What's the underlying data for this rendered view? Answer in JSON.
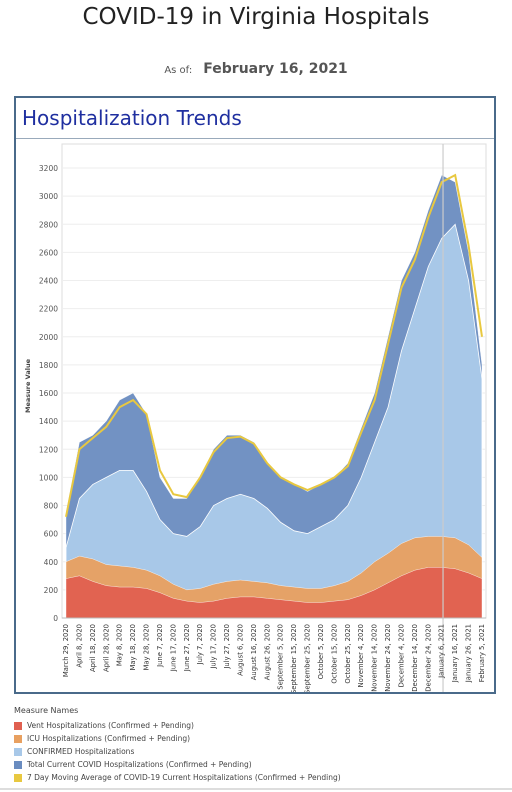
{
  "header": {
    "title": "COVID-19 in Virginia Hospitals",
    "as_of_label": "As of:",
    "as_of_value": "February 16, 2021"
  },
  "panel": {
    "title": "Hospitalization Trends"
  },
  "chart_data": {
    "type": "area",
    "ylabel": "Measure Value",
    "ylim": [
      0,
      3300
    ],
    "yticks": [
      0,
      200,
      400,
      600,
      800,
      1000,
      1200,
      1400,
      1600,
      1800,
      2000,
      2200,
      2400,
      2600,
      2800,
      3000,
      3200
    ],
    "grid": true,
    "x": [
      "March 29, 2020",
      "April 8, 2020",
      "April 18, 2020",
      "April 28, 2020",
      "May 8, 2020",
      "May 18, 2020",
      "May 28, 2020",
      "June 7, 2020",
      "June 17, 2020",
      "June 27, 2020",
      "July 7, 2020",
      "July 17, 2020",
      "July 27, 2020",
      "August 6, 2020",
      "August 16, 2020",
      "August 26, 2020",
      "September 5, 2020",
      "September 15, 2020",
      "September 25, 2020",
      "October 5, 2020",
      "October 15, 2020",
      "October 25, 2020",
      "November 4, 2020",
      "November 14, 2020",
      "November 24, 2020",
      "December 4, 2020",
      "December 14, 2020",
      "December 24, 2020",
      "January 6, 2021",
      "January 16, 2021",
      "January 26, 2021",
      "February 5, 2021"
    ],
    "xticks": [
      "March 29, 2020",
      "April 8, 2020",
      "April 18, 2020",
      "April 28, 2020",
      "May 8, 2020",
      "May 18, 2020",
      "May 28, 2020",
      "June 7, 2020",
      "June 17, 2020",
      "June 27, 2020",
      "July 7, 2020",
      "July 17, 2020",
      "July 27, 2020",
      "August 6, 2020",
      "August 16, 2020",
      "August 26, 2020",
      "September 5, 2020",
      "September 15, 2020",
      "September 25, 2020",
      "October 5, 2020",
      "October 15, 2020",
      "October 25, 2020",
      "November 4, 2020",
      "November 14, 2020",
      "November 24, 2020",
      "December 4, 2020",
      "December 14, 2020",
      "December 24, 2020",
      "January 6, 2021",
      "January 16, 2021",
      "January 26, 2021",
      "February 5, 2021"
    ],
    "legend_title": "Measure Names",
    "legend_position": "bottom",
    "series": [
      {
        "name": "Vent Hospitalizations (Confirmed + Pending)",
        "color": "#e06050",
        "values": [
          280,
          300,
          260,
          230,
          220,
          220,
          210,
          180,
          140,
          120,
          110,
          120,
          140,
          150,
          150,
          140,
          130,
          120,
          110,
          110,
          120,
          130,
          160,
          200,
          250,
          300,
          340,
          360,
          360,
          350,
          320,
          280
        ]
      },
      {
        "name": "ICU Hospitalizations (Confirmed + Pending)",
        "color": "#e8a060",
        "values": [
          400,
          440,
          420,
          380,
          370,
          360,
          340,
          300,
          240,
          200,
          210,
          240,
          260,
          270,
          260,
          250,
          230,
          220,
          210,
          210,
          230,
          260,
          320,
          400,
          460,
          530,
          570,
          580,
          580,
          570,
          520,
          430
        ]
      },
      {
        "name": "CONFIRMED Hospitalizations",
        "color": "#a8c8e8",
        "values": [
          500,
          850,
          950,
          1000,
          1050,
          1050,
          900,
          700,
          600,
          580,
          650,
          800,
          850,
          880,
          850,
          780,
          680,
          620,
          600,
          650,
          700,
          800,
          1000,
          1250,
          1500,
          1900,
          2200,
          2500,
          2700,
          2800,
          2400,
          1700
        ]
      },
      {
        "name": "Total Current COVID Hospitalizations (Confirmed + Pending)",
        "color": "#6a8cc0",
        "values": [
          750,
          1250,
          1300,
          1400,
          1550,
          1600,
          1450,
          1000,
          850,
          850,
          1000,
          1200,
          1300,
          1300,
          1250,
          1100,
          1000,
          950,
          900,
          950,
          1000,
          1100,
          1350,
          1600,
          2000,
          2400,
          2600,
          2900,
          3150,
          3100,
          2600,
          1800
        ]
      },
      {
        "name": "7 Day Moving Average of COVID-19 Current Hospitalizations (Confirmed + Pending)",
        "color": "#e8c840",
        "values": [
          720,
          1200,
          1280,
          1360,
          1500,
          1550,
          1450,
          1050,
          880,
          860,
          1000,
          1180,
          1280,
          1290,
          1240,
          1100,
          1000,
          950,
          910,
          950,
          1000,
          1080,
          1320,
          1550,
          1950,
          2350,
          2550,
          2850,
          3100,
          3150,
          2650,
          2000
        ]
      }
    ],
    "annotations": [
      "vertical reference line near January 1, 2021"
    ]
  }
}
